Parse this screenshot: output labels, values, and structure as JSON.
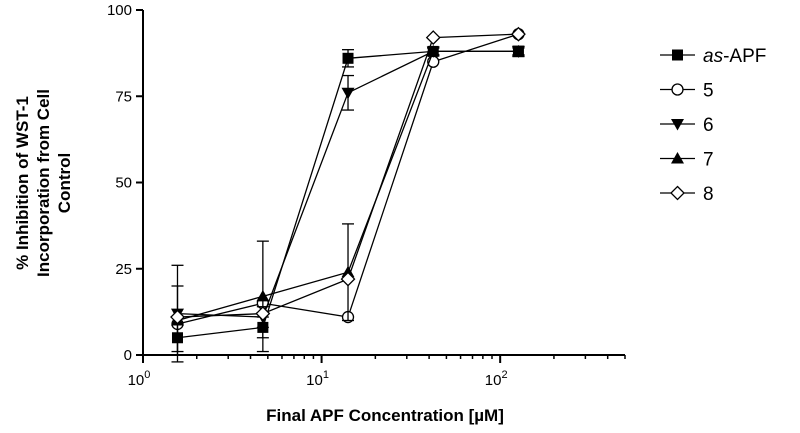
{
  "chart_data": {
    "type": "scatter",
    "xlabel": "Final APF Concentration  [µM]",
    "ylabel_lines": [
      "% Inhibition  of WST-1",
      "Incorporation from Cell",
      "Control"
    ],
    "x_scale": "log10",
    "xlim": [
      1,
      500
    ],
    "ylim": [
      0,
      100
    ],
    "x_ticks": [
      {
        "value": 1,
        "base": "10",
        "exp": "0"
      },
      {
        "value": 10,
        "base": "10",
        "exp": "1"
      },
      {
        "value": 100,
        "base": "10",
        "exp": "2"
      }
    ],
    "y_ticks": [
      {
        "value": 0,
        "label": "0"
      },
      {
        "value": 25,
        "label": "25"
      },
      {
        "value": 50,
        "label": "50"
      },
      {
        "value": 75,
        "label": "75"
      },
      {
        "value": 100,
        "label": "100"
      }
    ],
    "legend_position": "right",
    "grid": false,
    "series": [
      {
        "name_prefix": "as",
        "name_suffix": "-APF",
        "marker": "square-filled",
        "points": [
          {
            "x": 1.56,
            "y": 5,
            "err": 4
          },
          {
            "x": 4.69,
            "y": 8,
            "err": 3
          },
          {
            "x": 14.06,
            "y": 86,
            "err": 2.5
          },
          {
            "x": 42.19,
            "y": 88,
            "err": 1
          },
          {
            "x": 126.56,
            "y": 88,
            "err": 1.5
          }
        ]
      },
      {
        "name": "5",
        "marker": "circle-open",
        "points": [
          {
            "x": 1.56,
            "y": 9,
            "err": 0
          },
          {
            "x": 4.69,
            "y": 15,
            "err": 0
          },
          {
            "x": 14.06,
            "y": 11,
            "err": 0
          },
          {
            "x": 42.19,
            "y": 85,
            "err": 0
          },
          {
            "x": 126.56,
            "y": 93,
            "err": 0
          }
        ]
      },
      {
        "name": "6",
        "marker": "triangle-down-filled",
        "points": [
          {
            "x": 1.56,
            "y": 12,
            "err": 14
          },
          {
            "x": 4.69,
            "y": 11,
            "err": 3
          },
          {
            "x": 14.06,
            "y": 76,
            "err": 5
          },
          {
            "x": 42.19,
            "y": 88,
            "err": 1
          },
          {
            "x": 126.56,
            "y": 88,
            "err": 1
          }
        ]
      },
      {
        "name": "7",
        "marker": "triangle-up-filled",
        "points": [
          {
            "x": 1.56,
            "y": 10,
            "err": 10
          },
          {
            "x": 4.69,
            "y": 17,
            "err": 16
          },
          {
            "x": 14.06,
            "y": 24,
            "err": 14
          },
          {
            "x": 42.19,
            "y": 88,
            "err": 1
          },
          {
            "x": 126.56,
            "y": 88,
            "err": 1
          }
        ]
      },
      {
        "name": "8",
        "marker": "diamond-open",
        "points": [
          {
            "x": 1.56,
            "y": 11,
            "err": 0
          },
          {
            "x": 4.69,
            "y": 12,
            "err": 0
          },
          {
            "x": 14.06,
            "y": 22,
            "err": 0
          },
          {
            "x": 42.19,
            "y": 92,
            "err": 0
          },
          {
            "x": 126.56,
            "y": 93,
            "err": 0
          }
        ]
      }
    ]
  }
}
